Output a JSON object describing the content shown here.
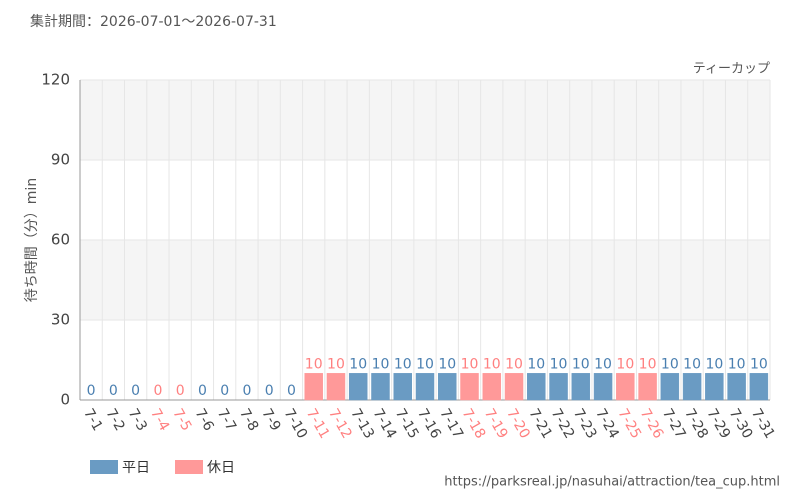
{
  "chart_data": {
    "type": "bar",
    "title": "集計期間：2026-07-01～2026-07-31",
    "subtitle": "ティーカップ",
    "y_label": "待ち時間（分）min",
    "source": "https://parksreal.jp/nasuhai/attraction/tea_cup.html",
    "categories": [
      "7-1",
      "7-2",
      "7-3",
      "7-4",
      "7-5",
      "7-6",
      "7-7",
      "7-8",
      "7-9",
      "7-10",
      "7-11",
      "7-12",
      "7-13",
      "7-14",
      "7-15",
      "7-16",
      "7-17",
      "7-18",
      "7-19",
      "7-20",
      "7-21",
      "7-22",
      "7-23",
      "7-24",
      "7-25",
      "7-26",
      "7-27",
      "7-28",
      "7-29",
      "7-30",
      "7-31"
    ],
    "series": [
      {
        "name": "平日",
        "color": "#6a9bc3",
        "label_color": "#4a7fb0",
        "values": [
          0,
          0,
          0,
          null,
          null,
          0,
          0,
          0,
          0,
          0,
          null,
          null,
          10,
          10,
          10,
          10,
          10,
          null,
          null,
          null,
          10,
          10,
          10,
          10,
          null,
          null,
          10,
          10,
          10,
          10,
          10
        ]
      },
      {
        "name": "休日",
        "color": "#ff9999",
        "label_color": "#ff8080",
        "values": [
          null,
          null,
          null,
          0,
          0,
          null,
          null,
          null,
          null,
          null,
          10,
          10,
          null,
          null,
          null,
          null,
          null,
          10,
          10,
          10,
          null,
          null,
          null,
          null,
          10,
          10,
          null,
          null,
          null,
          null,
          null
        ]
      }
    ],
    "ylim": [
      0,
      120
    ],
    "yticks": [
      0,
      30,
      60,
      90,
      120
    ],
    "grid": true
  }
}
